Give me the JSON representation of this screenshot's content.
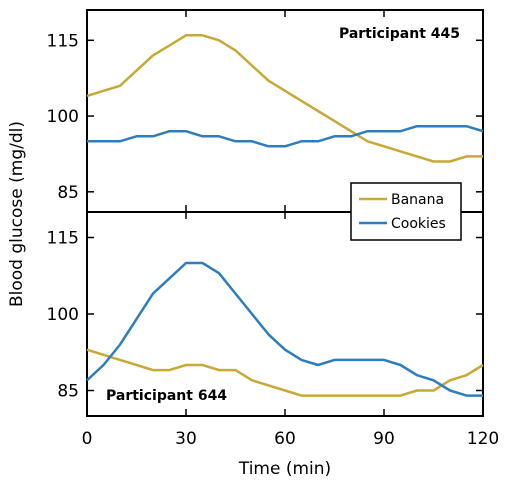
{
  "chart_data": {
    "type": "line",
    "xlabel": "Time (min)",
    "ylabel": "Blood glucose (mg/dl)",
    "x_ticks": [
      0,
      30,
      60,
      90,
      120
    ],
    "y_ticks": [
      85,
      100,
      115
    ],
    "xlim": [
      0,
      120
    ],
    "legend": {
      "placement": "center-right",
      "entries": [
        {
          "name": "Banana",
          "color": "#C8A836"
        },
        {
          "name": "Cookies",
          "color": "#2E7DBF"
        }
      ]
    },
    "x": [
      0,
      5,
      10,
      15,
      20,
      25,
      30,
      35,
      40,
      45,
      50,
      55,
      60,
      65,
      70,
      75,
      80,
      85,
      90,
      95,
      100,
      105,
      110,
      115,
      120
    ],
    "panels": [
      {
        "label": "Participant 445",
        "label_position": "top-right",
        "ylim": [
          81,
          121
        ],
        "series": [
          {
            "name": "Banana",
            "color": "#C8A836",
            "values": [
              104,
              105,
              106,
              109,
              112,
              114,
              116,
              116,
              115,
              113,
              110,
              107,
              105,
              103,
              101,
              99,
              97,
              95,
              94,
              93,
              92,
              91,
              91,
              92,
              92
            ]
          },
          {
            "name": "Cookies",
            "color": "#2E7DBF",
            "values": [
              95,
              95,
              95,
              96,
              96,
              97,
              97,
              96,
              96,
              95,
              95,
              94,
              94,
              95,
              95,
              96,
              96,
              97,
              97,
              97,
              98,
              98,
              98,
              98,
              97
            ]
          }
        ]
      },
      {
        "label": "Participant 644",
        "label_position": "bottom-left",
        "ylim": [
          80,
          120
        ],
        "series": [
          {
            "name": "Banana",
            "color": "#C8A836",
            "values": [
              93,
              92,
              91,
              90,
              89,
              89,
              90,
              90,
              89,
              89,
              87,
              86,
              85,
              84,
              84,
              84,
              84,
              84,
              84,
              84,
              85,
              85,
              87,
              88,
              90
            ]
          },
          {
            "name": "Cookies",
            "color": "#2E7DBF",
            "values": [
              87,
              90,
              94,
              99,
              104,
              107,
              110,
              110,
              108,
              104,
              100,
              96,
              93,
              91,
              90,
              91,
              91,
              91,
              91,
              90,
              88,
              87,
              85,
              84,
              84
            ]
          }
        ]
      }
    ]
  }
}
